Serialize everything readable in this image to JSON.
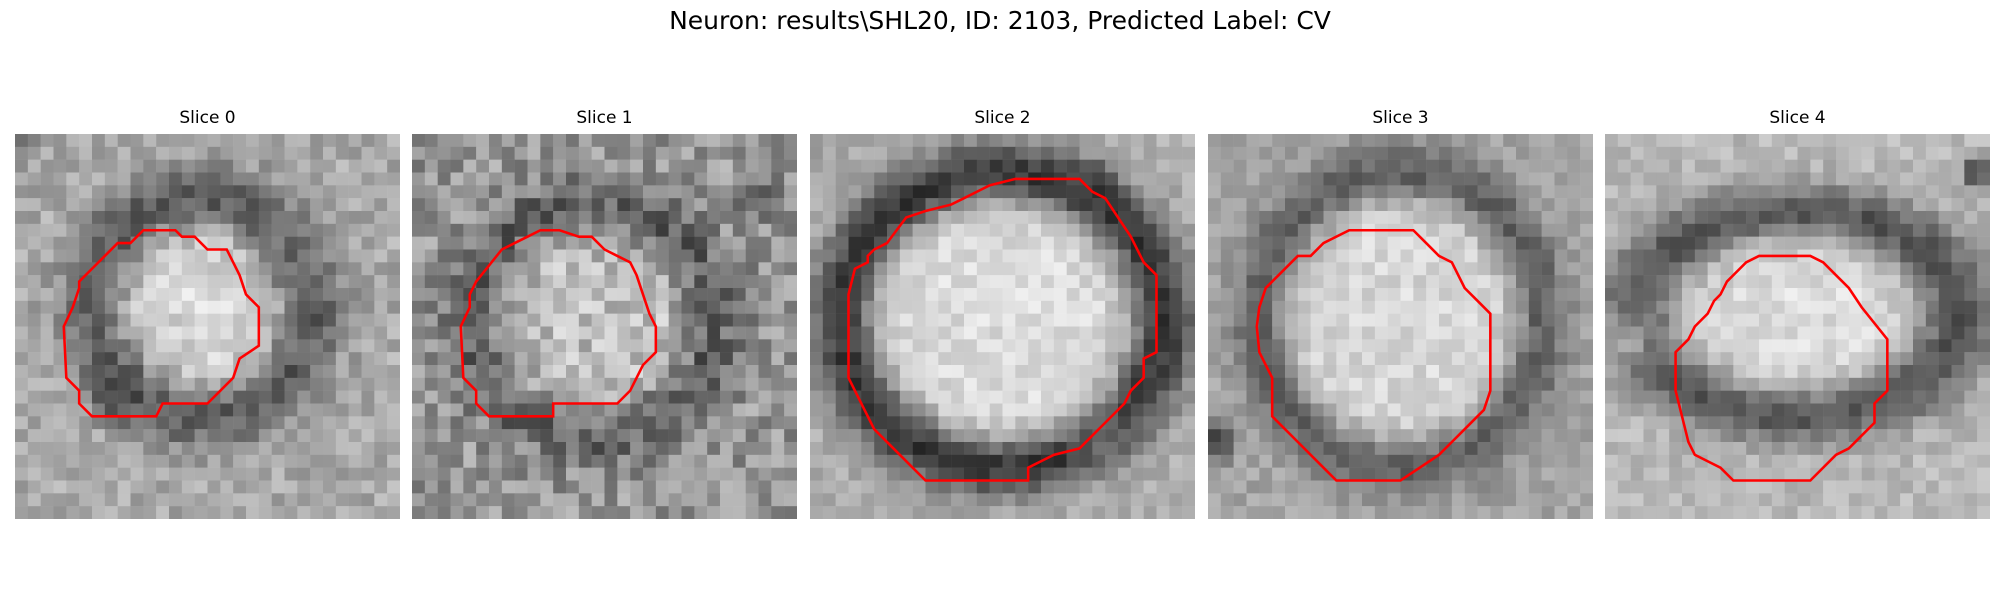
{
  "figure": {
    "title": "Neuron: results\\SHL20, ID: 2103, Predicted Label: CV"
  },
  "colors": {
    "contour": "#ff0000",
    "background": "#ffffff"
  },
  "panels": [
    {
      "title": "Slice 0"
    },
    {
      "title": "Slice 1"
    },
    {
      "title": "Slice 2"
    },
    {
      "title": "Slice 3"
    },
    {
      "title": "Slice 4"
    }
  ]
}
